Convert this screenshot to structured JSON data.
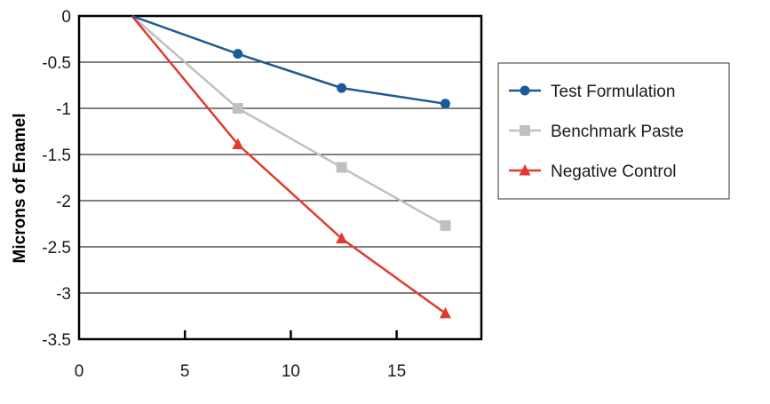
{
  "chart_data": {
    "type": "line",
    "title": "",
    "xlabel": "",
    "ylabel": "Microns of Enamel",
    "xlim": [
      0,
      19
    ],
    "ylim": [
      -3.5,
      0
    ],
    "x_ticks": [
      "0",
      "5",
      "10",
      "15"
    ],
    "x_tick_values": [
      0,
      5,
      10,
      15
    ],
    "y_ticks": [
      "0",
      "-0.5",
      "-1",
      "-1.5",
      "-2",
      "-2.5",
      "-3",
      "-3.5"
    ],
    "y_tick_values": [
      0,
      -0.5,
      -1,
      -1.5,
      -2,
      -2.5,
      -3,
      -3.5
    ],
    "grid": "horizontal",
    "legend_position": "right",
    "series": [
      {
        "name": "Test Formulation",
        "color": "#1a5a96",
        "marker": "circle",
        "x": [
          2.5,
          7.5,
          12.4,
          17.3
        ],
        "y": [
          0,
          -0.41,
          -0.78,
          -0.95
        ]
      },
      {
        "name": "Benchmark Paste",
        "color": "#c0c0c0",
        "marker": "square",
        "x": [
          2.5,
          7.5,
          12.4,
          17.3
        ],
        "y": [
          0,
          -1.0,
          -1.64,
          -2.27
        ]
      },
      {
        "name": "Negative Control",
        "color": "#e03a2e",
        "marker": "triangle",
        "x": [
          2.5,
          7.5,
          12.4,
          17.3
        ],
        "y": [
          0,
          -1.39,
          -2.41,
          -3.22
        ]
      }
    ]
  }
}
